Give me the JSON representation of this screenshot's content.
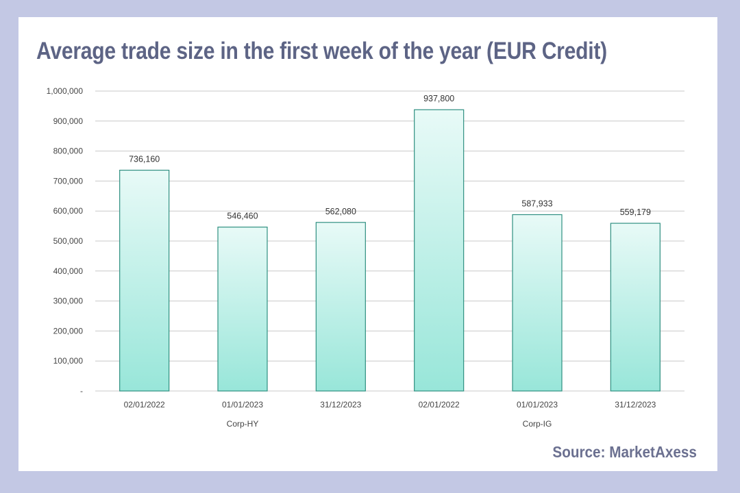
{
  "title": "Average trade size in the first week of the year (EUR Credit)",
  "source": "Source: MarketAxess",
  "colors": {
    "background": "#c3c8e4",
    "title": "#5d6485",
    "bar_top": "#e8faf7",
    "bar_bottom": "#98e6d9",
    "bar_stroke": "#2e8f80",
    "grid": "#c8c8c8"
  },
  "chart_data": {
    "type": "bar",
    "title": "",
    "xlabel": "",
    "ylabel": "",
    "ylim": [
      0,
      1000000
    ],
    "yticks": [
      0,
      100000,
      200000,
      300000,
      400000,
      500000,
      600000,
      700000,
      800000,
      900000,
      1000000
    ],
    "ytick_labels": [
      "-",
      "100,000",
      "200,000",
      "300,000",
      "400,000",
      "500,000",
      "600,000",
      "700,000",
      "800,000",
      "900,000",
      "1,000,000"
    ],
    "grid": true,
    "legend": "none",
    "categories": [
      "02/01/2022",
      "01/01/2023",
      "31/12/2023",
      "02/01/2022",
      "01/01/2023",
      "31/12/2023"
    ],
    "groups": [
      {
        "name": "Corp-HY",
        "start": 0,
        "count": 3
      },
      {
        "name": "Corp-IG",
        "start": 3,
        "count": 3
      }
    ],
    "values": [
      736160,
      546460,
      562080,
      937800,
      587933,
      559179
    ],
    "value_labels": [
      "736,160",
      "546,460",
      "562,080",
      "937,800",
      "587,933",
      "559,179"
    ]
  }
}
